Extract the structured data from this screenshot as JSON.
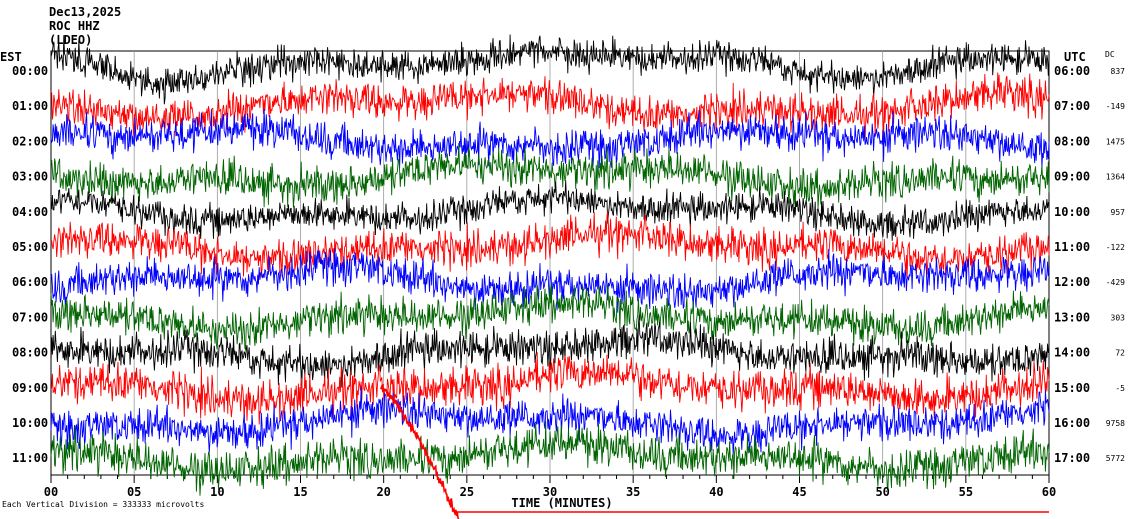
{
  "header": {
    "date": "Dec13,2025",
    "station": "ROC HHZ",
    "network": "(LDEO)"
  },
  "chart_data": {
    "type": "line",
    "title": "Dec13,2025",
    "left_axis_label": "EST",
    "right_axis_label": "UTC",
    "dc_label": "DC",
    "xlabel": "TIME (MINUTES)",
    "xlim": [
      0,
      60
    ],
    "x_ticks": [
      "00",
      "05",
      "10",
      "15",
      "20",
      "25",
      "30",
      "35",
      "40",
      "45",
      "50",
      "55",
      "60"
    ],
    "footer": "Each Vertical Division = 333333 microvolts",
    "grid": true,
    "series": [
      {
        "est": "00:00",
        "utc": "06:00",
        "dc": "837",
        "color": "#000000"
      },
      {
        "est": "01:00",
        "utc": "07:00",
        "dc": "-149",
        "color": "#ff0000"
      },
      {
        "est": "02:00",
        "utc": "08:00",
        "dc": "1475",
        "color": "#0000ff"
      },
      {
        "est": "03:00",
        "utc": "09:00",
        "dc": "1364",
        "color": "#006400"
      },
      {
        "est": "04:00",
        "utc": "10:00",
        "dc": "957",
        "color": "#000000"
      },
      {
        "est": "05:00",
        "utc": "11:00",
        "dc": "-122",
        "color": "#ff0000"
      },
      {
        "est": "06:00",
        "utc": "12:00",
        "dc": "-429",
        "color": "#0000ff"
      },
      {
        "est": "07:00",
        "utc": "13:00",
        "dc": "303",
        "color": "#006400"
      },
      {
        "est": "08:00",
        "utc": "14:00",
        "dc": "72",
        "color": "#000000"
      },
      {
        "est": "09:00",
        "utc": "15:00",
        "dc": "-5",
        "color": "#ff0000"
      },
      {
        "est": "10:00",
        "utc": "16:00",
        "dc": "9758",
        "color": "#0000ff"
      },
      {
        "est": "11:00",
        "utc": "17:00",
        "dc": "5772",
        "color": "#006400"
      }
    ]
  }
}
